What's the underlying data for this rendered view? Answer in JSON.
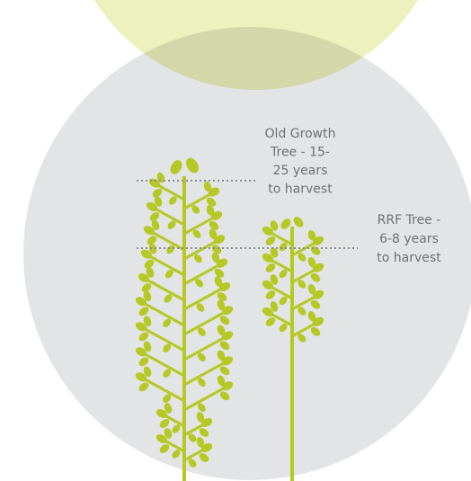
{
  "labels": {
    "old_growth": [
      "Old Growth",
      "Tree - 15-",
      "25 years",
      "to harvest"
    ],
    "rrf": [
      "RRF Tree -",
      "6-8 years",
      "to harvest"
    ]
  }
}
